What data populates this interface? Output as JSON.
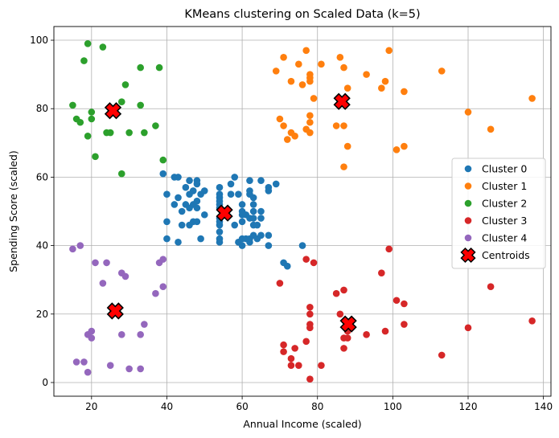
{
  "chart_data": {
    "type": "scatter",
    "title": "KMeans clustering on Scaled Data (k=5)",
    "xlabel": "Annual Income (scaled)",
    "ylabel": "Spending Score (scaled)",
    "xlim": [
      10,
      142
    ],
    "ylim": [
      -4,
      104
    ],
    "xticks": [
      20,
      40,
      60,
      80,
      100,
      120,
      140
    ],
    "yticks": [
      0,
      20,
      40,
      60,
      80,
      100
    ],
    "grid": true,
    "legend_position": "center-right",
    "series": [
      {
        "name": "Cluster 0",
        "color": "#1f77b4",
        "marker": "circle",
        "points": [
          [
            39,
            61
          ],
          [
            40,
            55
          ],
          [
            40,
            47
          ],
          [
            40,
            42
          ],
          [
            42,
            52
          ],
          [
            42,
            60
          ],
          [
            43,
            41
          ],
          [
            43,
            54
          ],
          [
            43,
            60
          ],
          [
            44,
            46
          ],
          [
            44,
            50
          ],
          [
            45,
            52
          ],
          [
            45,
            57
          ],
          [
            46,
            59
          ],
          [
            46,
            51
          ],
          [
            46,
            46
          ],
          [
            46,
            55
          ],
          [
            47,
            56
          ],
          [
            47,
            47
          ],
          [
            47,
            52
          ],
          [
            48,
            59
          ],
          [
            48,
            58
          ],
          [
            48,
            51
          ],
          [
            48,
            47
          ],
          [
            48,
            53
          ],
          [
            49,
            55
          ],
          [
            49,
            42
          ],
          [
            50,
            49
          ],
          [
            50,
            56
          ],
          [
            54,
            47
          ],
          [
            54,
            54
          ],
          [
            54,
            53
          ],
          [
            54,
            48
          ],
          [
            54,
            52
          ],
          [
            54,
            42
          ],
          [
            54,
            51
          ],
          [
            54,
            55
          ],
          [
            54,
            41
          ],
          [
            54,
            44
          ],
          [
            54,
            57
          ],
          [
            54,
            46
          ],
          [
            57,
            58
          ],
          [
            57,
            55
          ],
          [
            58,
            60
          ],
          [
            58,
            46
          ],
          [
            59,
            55
          ],
          [
            59,
            41
          ],
          [
            60,
            49
          ],
          [
            60,
            40
          ],
          [
            60,
            42
          ],
          [
            60,
            52
          ],
          [
            60,
            47
          ],
          [
            60,
            50
          ],
          [
            61,
            42
          ],
          [
            61,
            49
          ],
          [
            62,
            41
          ],
          [
            62,
            48
          ],
          [
            62,
            59
          ],
          [
            62,
            55
          ],
          [
            62,
            56
          ],
          [
            62,
            42
          ],
          [
            63,
            50
          ],
          [
            63,
            46
          ],
          [
            63,
            43
          ],
          [
            63,
            48
          ],
          [
            63,
            52
          ],
          [
            63,
            54
          ],
          [
            64,
            42
          ],
          [
            64,
            46
          ],
          [
            65,
            48
          ],
          [
            65,
            50
          ],
          [
            65,
            43
          ],
          [
            65,
            59
          ],
          [
            67,
            43
          ],
          [
            67,
            57
          ],
          [
            67,
            56
          ],
          [
            67,
            40
          ],
          [
            69,
            58
          ],
          [
            71,
            35
          ],
          [
            72,
            34
          ],
          [
            76,
            40
          ]
        ]
      },
      {
        "name": "Cluster 1",
        "color": "#ff7f0e",
        "marker": "circle",
        "points": [
          [
            69,
            91
          ],
          [
            70,
            77
          ],
          [
            71,
            95
          ],
          [
            71,
            75
          ],
          [
            72,
            71
          ],
          [
            73,
            88
          ],
          [
            73,
            73
          ],
          [
            74,
            72
          ],
          [
            75,
            93
          ],
          [
            76,
            87
          ],
          [
            77,
            97
          ],
          [
            77,
            74
          ],
          [
            78,
            90
          ],
          [
            78,
            88
          ],
          [
            78,
            76
          ],
          [
            78,
            89
          ],
          [
            78,
            78
          ],
          [
            78,
            73
          ],
          [
            79,
            83
          ],
          [
            81,
            93
          ],
          [
            85,
            75
          ],
          [
            86,
            95
          ],
          [
            87,
            63
          ],
          [
            87,
            75
          ],
          [
            87,
            92
          ],
          [
            88,
            86
          ],
          [
            88,
            69
          ],
          [
            93,
            90
          ],
          [
            97,
            86
          ],
          [
            98,
            88
          ],
          [
            99,
            97
          ],
          [
            101,
            68
          ],
          [
            103,
            85
          ],
          [
            103,
            69
          ],
          [
            113,
            91
          ],
          [
            120,
            79
          ],
          [
            126,
            74
          ],
          [
            137,
            83
          ]
        ]
      },
      {
        "name": "Cluster 2",
        "color": "#2ca02c",
        "marker": "circle",
        "points": [
          [
            15,
            81
          ],
          [
            16,
            77
          ],
          [
            17,
            76
          ],
          [
            18,
            94
          ],
          [
            19,
            72
          ],
          [
            19,
            99
          ],
          [
            20,
            77
          ],
          [
            20,
            79
          ],
          [
            21,
            66
          ],
          [
            23,
            98
          ],
          [
            24,
            73
          ],
          [
            25,
            73
          ],
          [
            28,
            82
          ],
          [
            28,
            61
          ],
          [
            29,
            87
          ],
          [
            30,
            73
          ],
          [
            33,
            92
          ],
          [
            33,
            81
          ],
          [
            34,
            73
          ],
          [
            37,
            75
          ],
          [
            38,
            92
          ],
          [
            39,
            65
          ]
        ]
      },
      {
        "name": "Cluster 3",
        "color": "#d62728",
        "marker": "circle",
        "points": [
          [
            70,
            29
          ],
          [
            71,
            11
          ],
          [
            71,
            9
          ],
          [
            73,
            5
          ],
          [
            73,
            7
          ],
          [
            74,
            10
          ],
          [
            75,
            5
          ],
          [
            77,
            12
          ],
          [
            77,
            36
          ],
          [
            78,
            22
          ],
          [
            78,
            17
          ],
          [
            78,
            20
          ],
          [
            78,
            16
          ],
          [
            78,
            1
          ],
          [
            79,
            35
          ],
          [
            81,
            5
          ],
          [
            85,
            26
          ],
          [
            86,
            20
          ],
          [
            87,
            27
          ],
          [
            87,
            13
          ],
          [
            87,
            10
          ],
          [
            88,
            13
          ],
          [
            88,
            15
          ],
          [
            93,
            14
          ],
          [
            97,
            32
          ],
          [
            98,
            15
          ],
          [
            99,
            39
          ],
          [
            101,
            24
          ],
          [
            103,
            17
          ],
          [
            103,
            23
          ],
          [
            113,
            8
          ],
          [
            120,
            16
          ],
          [
            126,
            28
          ],
          [
            137,
            18
          ]
        ]
      },
      {
        "name": "Cluster 4",
        "color": "#9467bd",
        "marker": "circle",
        "points": [
          [
            15,
            39
          ],
          [
            16,
            6
          ],
          [
            17,
            40
          ],
          [
            18,
            6
          ],
          [
            19,
            3
          ],
          [
            19,
            14
          ],
          [
            20,
            15
          ],
          [
            20,
            13
          ],
          [
            21,
            35
          ],
          [
            23,
            29
          ],
          [
            24,
            35
          ],
          [
            25,
            5
          ],
          [
            28,
            14
          ],
          [
            28,
            32
          ],
          [
            29,
            31
          ],
          [
            30,
            4
          ],
          [
            33,
            4
          ],
          [
            33,
            14
          ],
          [
            34,
            17
          ],
          [
            37,
            26
          ],
          [
            38,
            35
          ],
          [
            39,
            36
          ],
          [
            39,
            28
          ]
        ]
      },
      {
        "name": "Centroids",
        "color": "#ff0000",
        "edge_color": "#000000",
        "marker": "X",
        "points": [
          [
            55.3,
            49.5
          ],
          [
            86.5,
            82.1
          ],
          [
            25.7,
            79.4
          ],
          [
            88.2,
            17.1
          ],
          [
            26.3,
            20.9
          ]
        ]
      }
    ]
  }
}
